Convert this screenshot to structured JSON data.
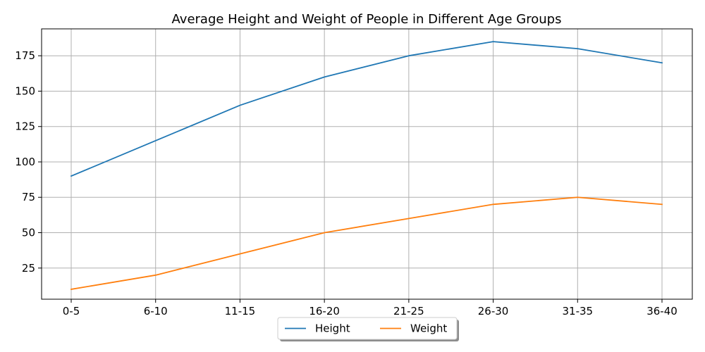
{
  "chart_data": {
    "type": "line",
    "title": "Average Height and Weight of People in Different Age Groups",
    "xlabel": "",
    "ylabel": "",
    "categories": [
      "0-5",
      "6-10",
      "11-15",
      "16-20",
      "21-25",
      "26-30",
      "31-35",
      "36-40"
    ],
    "ylim": [
      3,
      194
    ],
    "yticks": [
      25,
      50,
      75,
      100,
      125,
      150,
      175
    ],
    "grid": true,
    "legend_placement": "bottom-center",
    "series": [
      {
        "name": "Height",
        "color": "#1f77b4",
        "values": [
          90,
          115,
          140,
          160,
          175,
          185,
          180,
          170
        ]
      },
      {
        "name": "Weight",
        "color": "#ff7f0e",
        "values": [
          10,
          20,
          35,
          50,
          60,
          70,
          75,
          70
        ]
      }
    ]
  }
}
